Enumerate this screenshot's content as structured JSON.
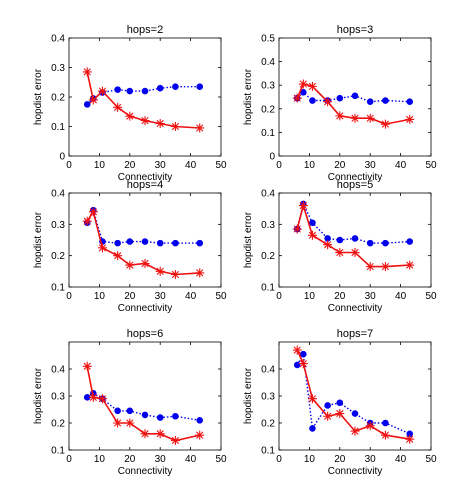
{
  "chart_data": [
    {
      "type": "line",
      "title": "hops=2",
      "xlabel": "Connectivity",
      "ylabel": "hopdist error",
      "xlim": [
        0,
        50
      ],
      "ylim": [
        0,
        0.4
      ],
      "xticks": [
        0,
        10,
        20,
        30,
        40,
        50
      ],
      "yticks": [
        0,
        0.1,
        0.2,
        0.3,
        0.4
      ],
      "grid": false,
      "series": [
        {
          "style": "blue-dotted-circle",
          "x": [
            6,
            8,
            11,
            16,
            20,
            25,
            30,
            35,
            43
          ],
          "y": [
            0.175,
            0.195,
            0.215,
            0.225,
            0.22,
            0.22,
            0.23,
            0.235,
            0.235
          ]
        },
        {
          "style": "red-solid-star",
          "x": [
            6,
            8,
            11,
            16,
            20,
            25,
            30,
            35,
            43
          ],
          "y": [
            0.285,
            0.19,
            0.22,
            0.165,
            0.135,
            0.12,
            0.11,
            0.1,
            0.095
          ]
        }
      ]
    },
    {
      "type": "line",
      "title": "hops=3",
      "xlabel": "Connectivity",
      "ylabel": "hopdist error",
      "xlim": [
        0,
        50
      ],
      "ylim": [
        0,
        0.5
      ],
      "xticks": [
        0,
        10,
        20,
        30,
        40,
        50
      ],
      "yticks": [
        0,
        0.1,
        0.2,
        0.3,
        0.4,
        0.5
      ],
      "grid": false,
      "series": [
        {
          "style": "blue-dotted-circle",
          "x": [
            6,
            8,
            11,
            16,
            20,
            25,
            30,
            35,
            43
          ],
          "y": [
            0.245,
            0.27,
            0.235,
            0.235,
            0.245,
            0.255,
            0.23,
            0.235,
            0.23
          ]
        },
        {
          "style": "red-solid-star",
          "x": [
            6,
            8,
            11,
            16,
            20,
            25,
            30,
            35,
            43
          ],
          "y": [
            0.245,
            0.305,
            0.295,
            0.23,
            0.17,
            0.16,
            0.16,
            0.135,
            0.155
          ]
        }
      ]
    },
    {
      "type": "line",
      "title": "hops=4",
      "xlabel": "Connectivity",
      "ylabel": "hopdist error",
      "xlim": [
        0,
        50
      ],
      "ylim": [
        0.1,
        0.4
      ],
      "xticks": [
        0,
        10,
        20,
        30,
        40,
        50
      ],
      "yticks": [
        0.1,
        0.2,
        0.3,
        0.4
      ],
      "grid": false,
      "series": [
        {
          "style": "blue-dotted-circle",
          "x": [
            6,
            8,
            11,
            16,
            20,
            25,
            30,
            35,
            43
          ],
          "y": [
            0.305,
            0.345,
            0.245,
            0.24,
            0.245,
            0.245,
            0.24,
            0.24,
            0.24
          ]
        },
        {
          "style": "red-solid-star",
          "x": [
            6,
            8,
            11,
            16,
            20,
            25,
            30,
            35,
            43
          ],
          "y": [
            0.31,
            0.34,
            0.225,
            0.2,
            0.17,
            0.175,
            0.15,
            0.14,
            0.145
          ]
        }
      ]
    },
    {
      "type": "line",
      "title": "hops=5",
      "xlabel": "Connectivity",
      "ylabel": "hopdist error",
      "xlim": [
        0,
        50
      ],
      "ylim": [
        0.1,
        0.4
      ],
      "xticks": [
        0,
        10,
        20,
        30,
        40,
        50
      ],
      "yticks": [
        0.1,
        0.2,
        0.3,
        0.4
      ],
      "grid": false,
      "series": [
        {
          "style": "blue-dotted-circle",
          "x": [
            6,
            8,
            11,
            16,
            20,
            25,
            30,
            35,
            43
          ],
          "y": [
            0.285,
            0.365,
            0.305,
            0.255,
            0.25,
            0.255,
            0.24,
            0.24,
            0.245
          ]
        },
        {
          "style": "red-solid-star",
          "x": [
            6,
            8,
            11,
            16,
            20,
            25,
            30,
            35,
            43
          ],
          "y": [
            0.285,
            0.36,
            0.265,
            0.235,
            0.21,
            0.21,
            0.165,
            0.165,
            0.17
          ]
        }
      ]
    },
    {
      "type": "line",
      "title": "hops=6",
      "xlabel": "Connectivity",
      "ylabel": "hopdist error",
      "xlim": [
        0,
        50
      ],
      "ylim": [
        0.1,
        0.5
      ],
      "xticks": [
        0,
        10,
        20,
        30,
        40,
        50
      ],
      "yticks": [
        0.1,
        0.2,
        0.3,
        0.4
      ],
      "grid": false,
      "series": [
        {
          "style": "blue-dotted-circle",
          "x": [
            6,
            8,
            11,
            16,
            20,
            25,
            30,
            35,
            43
          ],
          "y": [
            0.295,
            0.31,
            0.29,
            0.245,
            0.245,
            0.23,
            0.22,
            0.225,
            0.21
          ]
        },
        {
          "style": "red-solid-star",
          "x": [
            6,
            8,
            11,
            16,
            20,
            25,
            30,
            35,
            43
          ],
          "y": [
            0.41,
            0.295,
            0.29,
            0.2,
            0.2,
            0.16,
            0.16,
            0.135,
            0.155
          ]
        }
      ]
    },
    {
      "type": "line",
      "title": "hops=7",
      "xlabel": "Connectivity",
      "ylabel": "hopdist error",
      "xlim": [
        0,
        50
      ],
      "ylim": [
        0.1,
        0.5
      ],
      "xticks": [
        0,
        10,
        20,
        30,
        40,
        50
      ],
      "yticks": [
        0.1,
        0.2,
        0.3,
        0.4
      ],
      "grid": false,
      "series": [
        {
          "style": "blue-dotted-circle",
          "x": [
            6,
            8,
            11,
            16,
            20,
            25,
            30,
            35,
            43
          ],
          "y": [
            0.415,
            0.455,
            0.18,
            0.265,
            0.275,
            0.235,
            0.2,
            0.2,
            0.16
          ]
        },
        {
          "style": "red-solid-star",
          "x": [
            6,
            8,
            11,
            16,
            20,
            25,
            30,
            35,
            43
          ],
          "y": [
            0.47,
            0.42,
            0.29,
            0.225,
            0.235,
            0.17,
            0.19,
            0.155,
            0.14
          ]
        }
      ]
    }
  ]
}
